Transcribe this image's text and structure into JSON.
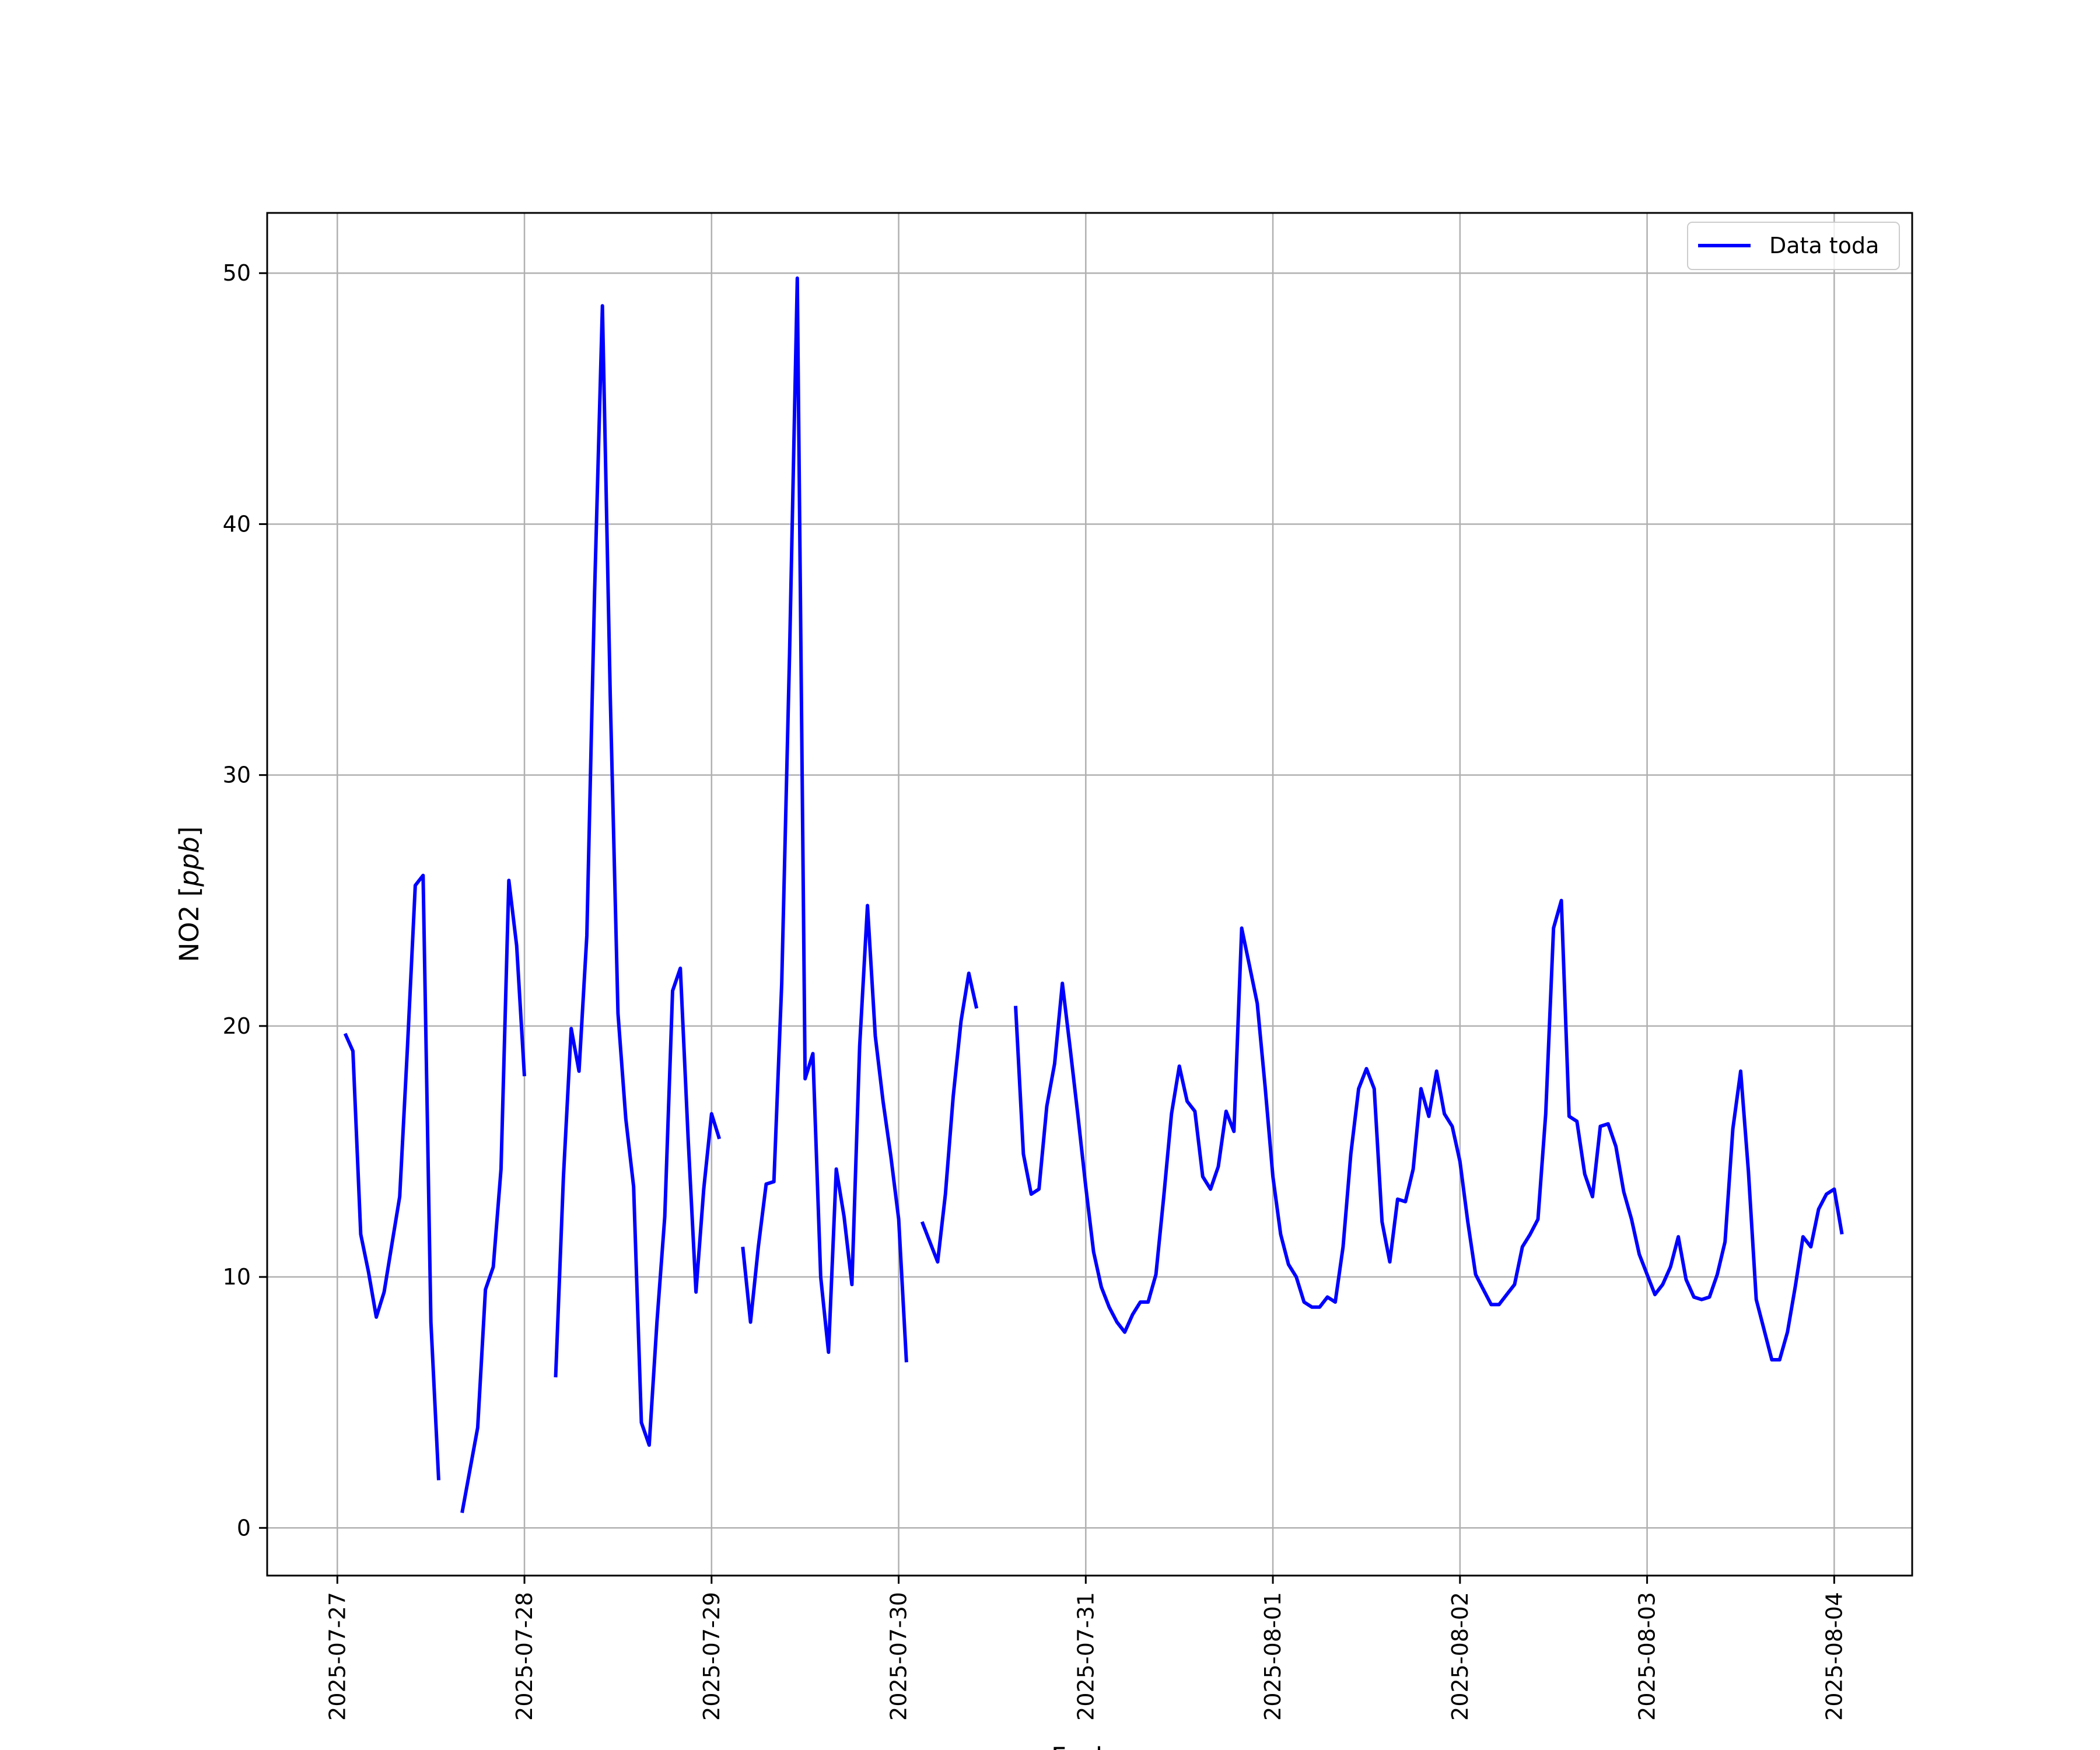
{
  "chart_data": {
    "type": "line",
    "title": "",
    "xlabel": "Fecha",
    "ylabel": "NO2 [ppb]",
    "ylabel_main": "NO2 [",
    "ylabel_unit": "ppb",
    "ylabel_end": "]",
    "x_ticks": [
      "2025-07-27",
      "2025-07-28",
      "2025-07-29",
      "2025-07-30",
      "2025-07-31",
      "2025-08-01",
      "2025-08-02",
      "2025-08-03",
      "2025-08-04"
    ],
    "y_ticks": [
      0,
      10,
      20,
      30,
      40,
      50
    ],
    "xlim": [
      "2025-07-26 15:00",
      "2025-08-04 10:00"
    ],
    "ylim": [
      -1.9,
      52.4
    ],
    "grid": true,
    "legend_position": "top-right",
    "colors": {
      "series": "#0000ff",
      "grid": "#b0b0b0",
      "axes": "#000000"
    },
    "series": [
      {
        "name": "Data toda",
        "segments": [
          [
            [
              "2025-07-27 01:00",
              19.7
            ],
            [
              "2025-07-27 02:00",
              19.0
            ],
            [
              "2025-07-27 03:00",
              11.7
            ],
            [
              "2025-07-27 04:00",
              10.2
            ],
            [
              "2025-07-27 05:00",
              8.4
            ],
            [
              "2025-07-27 06:00",
              9.4
            ],
            [
              "2025-07-27 07:00",
              11.3
            ],
            [
              "2025-07-27 08:00",
              13.2
            ],
            [
              "2025-07-27 09:00",
              19.2
            ],
            [
              "2025-07-27 10:00",
              25.6
            ],
            [
              "2025-07-27 11:00",
              26.0
            ],
            [
              "2025-07-27 12:00",
              8.2
            ],
            [
              "2025-07-27 13:00",
              1.9
            ]
          ],
          [
            [
              "2025-07-27 16:00",
              0.6
            ],
            [
              "2025-07-27 17:00",
              2.3
            ],
            [
              "2025-07-27 18:00",
              4.0
            ],
            [
              "2025-07-27 19:00",
              9.5
            ],
            [
              "2025-07-27 20:00",
              10.4
            ],
            [
              "2025-07-27 21:00",
              14.3
            ],
            [
              "2025-07-27 22:00",
              25.8
            ],
            [
              "2025-07-27 23:00",
              23.2
            ],
            [
              "2025-07-28 00:00",
              18.0
            ]
          ],
          [
            [
              "2025-07-28 04:00",
              6.0
            ],
            [
              "2025-07-28 05:00",
              14.0
            ],
            [
              "2025-07-28 06:00",
              19.9
            ],
            [
              "2025-07-28 07:00",
              18.2
            ],
            [
              "2025-07-28 08:00",
              23.6
            ],
            [
              "2025-07-28 09:00",
              37.3
            ],
            [
              "2025-07-28 10:00",
              48.7
            ],
            [
              "2025-07-28 11:00",
              33.2
            ],
            [
              "2025-07-28 12:00",
              20.5
            ],
            [
              "2025-07-28 13:00",
              16.3
            ],
            [
              "2025-07-28 14:00",
              13.6
            ],
            [
              "2025-07-28 15:00",
              4.2
            ],
            [
              "2025-07-28 16:00",
              3.3
            ],
            [
              "2025-07-28 17:00",
              8.2
            ],
            [
              "2025-07-28 18:00",
              12.4
            ],
            [
              "2025-07-28 19:00",
              21.4
            ],
            [
              "2025-07-28 20:00",
              22.3
            ],
            [
              "2025-07-28 21:00",
              15.5
            ],
            [
              "2025-07-28 22:00",
              9.4
            ],
            [
              "2025-07-28 23:00",
              13.5
            ],
            [
              "2025-07-29 00:00",
              16.5
            ],
            [
              "2025-07-29 01:00",
              15.5
            ]
          ],
          [
            [
              "2025-07-29 04:00",
              11.2
            ],
            [
              "2025-07-29 05:00",
              8.2
            ],
            [
              "2025-07-29 06:00",
              11.2
            ],
            [
              "2025-07-29 07:00",
              13.7
            ],
            [
              "2025-07-29 08:00",
              13.8
            ],
            [
              "2025-07-29 09:00",
              21.7
            ],
            [
              "2025-07-29 10:00",
              34.8
            ],
            [
              "2025-07-29 11:00",
              49.8
            ],
            [
              "2025-07-29 12:00",
              17.9
            ],
            [
              "2025-07-29 13:00",
              18.9
            ],
            [
              "2025-07-29 14:00",
              10.0
            ],
            [
              "2025-07-29 15:00",
              7.0
            ],
            [
              "2025-07-29 16:00",
              14.3
            ],
            [
              "2025-07-29 17:00",
              12.4
            ],
            [
              "2025-07-29 18:00",
              9.7
            ],
            [
              "2025-07-29 19:00",
              19.2
            ],
            [
              "2025-07-29 20:00",
              24.8
            ],
            [
              "2025-07-29 21:00",
              19.6
            ],
            [
              "2025-07-29 22:00",
              17.0
            ],
            [
              "2025-07-29 23:00",
              14.8
            ],
            [
              "2025-07-30 00:00",
              12.3
            ],
            [
              "2025-07-30 01:00",
              6.6
            ]
          ],
          [
            [
              "2025-07-30 03:00",
              12.2
            ],
            [
              "2025-07-30 04:00",
              11.4
            ],
            [
              "2025-07-30 05:00",
              10.6
            ],
            [
              "2025-07-30 06:00",
              13.3
            ],
            [
              "2025-07-30 07:00",
              17.2
            ],
            [
              "2025-07-30 08:00",
              20.2
            ],
            [
              "2025-07-30 09:00",
              22.1
            ],
            [
              "2025-07-30 10:00",
              20.7
            ]
          ],
          [
            [
              "2025-07-30 15:00",
              20.8
            ],
            [
              "2025-07-30 16:00",
              14.9
            ],
            [
              "2025-07-30 17:00",
              13.3
            ],
            [
              "2025-07-30 18:00",
              13.5
            ],
            [
              "2025-07-30 19:00",
              16.8
            ],
            [
              "2025-07-30 20:00",
              18.5
            ],
            [
              "2025-07-30 21:00",
              21.7
            ],
            [
              "2025-07-30 22:00",
              19.1
            ],
            [
              "2025-07-30 23:00",
              16.4
            ],
            [
              "2025-07-31 00:00",
              13.6
            ],
            [
              "2025-07-31 01:00",
              11.0
            ],
            [
              "2025-07-31 02:00",
              9.6
            ],
            [
              "2025-07-31 03:00",
              8.8
            ],
            [
              "2025-07-31 04:00",
              8.2
            ],
            [
              "2025-07-31 05:00",
              7.8
            ],
            [
              "2025-07-31 06:00",
              8.5
            ],
            [
              "2025-07-31 07:00",
              9.0
            ],
            [
              "2025-07-31 08:00",
              9.0
            ],
            [
              "2025-07-31 09:00",
              10.1
            ],
            [
              "2025-07-31 10:00",
              13.2
            ],
            [
              "2025-07-31 11:00",
              16.5
            ],
            [
              "2025-07-31 12:00",
              18.4
            ],
            [
              "2025-07-31 13:00",
              17.0
            ],
            [
              "2025-07-31 14:00",
              16.6
            ],
            [
              "2025-07-31 15:00",
              14.0
            ],
            [
              "2025-07-31 16:00",
              13.5
            ],
            [
              "2025-07-31 17:00",
              14.4
            ],
            [
              "2025-07-31 18:00",
              16.6
            ],
            [
              "2025-07-31 19:00",
              15.8
            ],
            [
              "2025-07-31 20:00",
              23.9
            ],
            [
              "2025-07-31 21:00",
              22.4
            ],
            [
              "2025-07-31 22:00",
              20.9
            ],
            [
              "2025-07-31 23:00",
              17.6
            ],
            [
              "2025-08-01 00:00",
              14.0
            ],
            [
              "2025-08-01 01:00",
              11.7
            ],
            [
              "2025-08-01 02:00",
              10.5
            ],
            [
              "2025-08-01 03:00",
              10.0
            ],
            [
              "2025-08-01 04:00",
              9.0
            ],
            [
              "2025-08-01 05:00",
              8.8
            ],
            [
              "2025-08-01 06:00",
              8.8
            ],
            [
              "2025-08-01 07:00",
              9.2
            ],
            [
              "2025-08-01 08:00",
              9.0
            ],
            [
              "2025-08-01 09:00",
              11.2
            ],
            [
              "2025-08-01 10:00",
              14.9
            ],
            [
              "2025-08-01 11:00",
              17.5
            ],
            [
              "2025-08-01 12:00",
              18.3
            ],
            [
              "2025-08-01 13:00",
              17.5
            ],
            [
              "2025-08-01 14:00",
              12.2
            ],
            [
              "2025-08-01 15:00",
              10.6
            ],
            [
              "2025-08-01 16:00",
              13.1
            ],
            [
              "2025-08-01 17:00",
              13.0
            ],
            [
              "2025-08-01 18:00",
              14.3
            ],
            [
              "2025-08-01 19:00",
              17.5
            ],
            [
              "2025-08-01 20:00",
              16.4
            ],
            [
              "2025-08-01 21:00",
              18.2
            ],
            [
              "2025-08-01 22:00",
              16.5
            ],
            [
              "2025-08-01 23:00",
              16.0
            ],
            [
              "2025-08-02 00:00",
              14.6
            ],
            [
              "2025-08-02 01:00",
              12.2
            ],
            [
              "2025-08-02 02:00",
              10.1
            ],
            [
              "2025-08-02 03:00",
              9.5
            ],
            [
              "2025-08-02 04:00",
              8.9
            ],
            [
              "2025-08-02 05:00",
              8.9
            ],
            [
              "2025-08-02 06:00",
              9.3
            ],
            [
              "2025-08-02 07:00",
              9.7
            ],
            [
              "2025-08-02 08:00",
              11.2
            ],
            [
              "2025-08-02 09:00",
              11.7
            ],
            [
              "2025-08-02 10:00",
              12.3
            ],
            [
              "2025-08-02 11:00",
              16.5
            ],
            [
              "2025-08-02 12:00",
              23.9
            ],
            [
              "2025-08-02 13:00",
              25.0
            ],
            [
              "2025-08-02 14:00",
              16.4
            ],
            [
              "2025-08-02 15:00",
              16.2
            ],
            [
              "2025-08-02 16:00",
              14.1
            ],
            [
              "2025-08-02 17:00",
              13.2
            ],
            [
              "2025-08-02 18:00",
              16.0
            ],
            [
              "2025-08-02 19:00",
              16.1
            ],
            [
              "2025-08-02 20:00",
              15.2
            ],
            [
              "2025-08-02 21:00",
              13.4
            ],
            [
              "2025-08-02 22:00",
              12.3
            ],
            [
              "2025-08-02 23:00",
              10.9
            ],
            [
              "2025-08-03 00:00",
              10.1
            ],
            [
              "2025-08-03 01:00",
              9.3
            ],
            [
              "2025-08-03 02:00",
              9.7
            ],
            [
              "2025-08-03 03:00",
              10.4
            ],
            [
              "2025-08-03 04:00",
              11.6
            ],
            [
              "2025-08-03 05:00",
              9.9
            ],
            [
              "2025-08-03 06:00",
              9.2
            ],
            [
              "2025-08-03 07:00",
              9.1
            ],
            [
              "2025-08-03 08:00",
              9.2
            ],
            [
              "2025-08-03 09:00",
              10.1
            ],
            [
              "2025-08-03 10:00",
              11.4
            ],
            [
              "2025-08-03 11:00",
              15.9
            ],
            [
              "2025-08-03 12:00",
              18.2
            ],
            [
              "2025-08-03 13:00",
              14.2
            ],
            [
              "2025-08-03 14:00",
              9.1
            ],
            [
              "2025-08-03 15:00",
              7.9
            ],
            [
              "2025-08-03 16:00",
              6.7
            ],
            [
              "2025-08-03 17:00",
              6.7
            ],
            [
              "2025-08-03 18:00",
              7.8
            ],
            [
              "2025-08-03 19:00",
              9.6
            ],
            [
              "2025-08-03 20:00",
              11.6
            ],
            [
              "2025-08-03 21:00",
              11.2
            ],
            [
              "2025-08-03 22:00",
              12.7
            ],
            [
              "2025-08-03 23:00",
              13.3
            ],
            [
              "2025-08-04 00:00",
              13.5
            ],
            [
              "2025-08-04 01:00",
              11.7
            ]
          ]
        ]
      }
    ]
  }
}
